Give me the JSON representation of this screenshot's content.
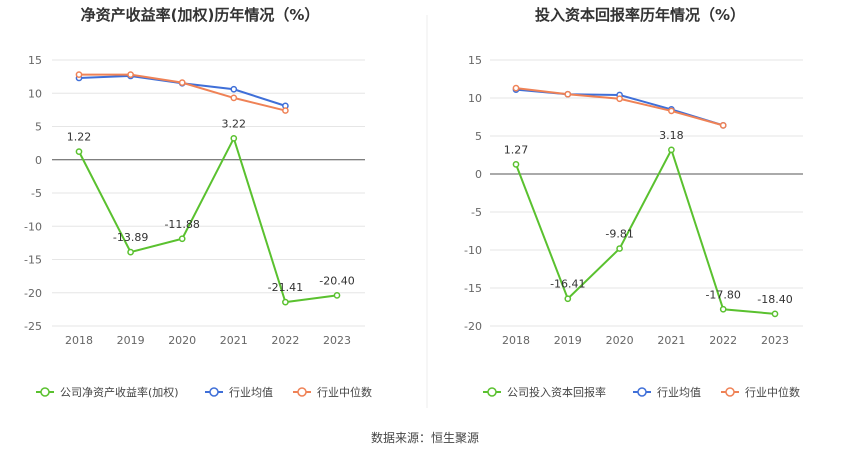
{
  "source_text": "数据来源：恒生聚源",
  "charts": [
    {
      "title": "净资产收益率(加权)历年情况（%）",
      "chart_data": {
        "type": "line",
        "title": "净资产收益率(加权)历年情况（%）",
        "categories": [
          "2018",
          "2019",
          "2020",
          "2021",
          "2022",
          "2023"
        ],
        "ylim": [
          -25,
          15
        ],
        "yticks": [
          15,
          10,
          5,
          0,
          -5,
          -10,
          -15,
          -20,
          -25
        ],
        "legend_position": "bottom",
        "series": [
          {
            "name": "公司净资产收益率(加权)",
            "color": "#5ac12f",
            "values": [
              1.22,
              -13.89,
              -11.88,
              3.22,
              -21.41,
              -20.4
            ],
            "labels": [
              "1.22",
              "-13.89",
              "-11.88",
              "3.22",
              "-21.41",
              "-20.40"
            ]
          },
          {
            "name": "行业均值",
            "color": "#3f6fd8",
            "values": [
              12.3,
              12.6,
              11.5,
              10.6,
              8.1,
              null
            ]
          },
          {
            "name": "行业中位数",
            "color": "#ef8256",
            "values": [
              12.8,
              12.8,
              11.6,
              9.3,
              7.4,
              null
            ]
          }
        ]
      }
    },
    {
      "title": "投入资本回报率历年情况（%）",
      "chart_data": {
        "type": "line",
        "title": "投入资本回报率历年情况（%）",
        "categories": [
          "2018",
          "2019",
          "2020",
          "2021",
          "2022",
          "2023"
        ],
        "ylim": [
          -20,
          15
        ],
        "yticks": [
          15,
          10,
          5,
          0,
          -5,
          -10,
          -15,
          -20
        ],
        "legend_position": "bottom",
        "series": [
          {
            "name": "公司投入资本回报率",
            "color": "#5ac12f",
            "values": [
              1.27,
              -16.41,
              -9.81,
              3.18,
              -17.8,
              -18.4
            ],
            "labels": [
              "1.27",
              "-16.41",
              "-9.81",
              "3.18",
              "-17.80",
              "-18.40"
            ]
          },
          {
            "name": "行业均值",
            "color": "#3f6fd8",
            "values": [
              11.1,
              10.5,
              10.4,
              8.5,
              6.4,
              null
            ]
          },
          {
            "name": "行业中位数",
            "color": "#ef8256",
            "values": [
              11.3,
              10.5,
              9.9,
              8.3,
              6.4,
              null
            ]
          }
        ]
      }
    }
  ]
}
